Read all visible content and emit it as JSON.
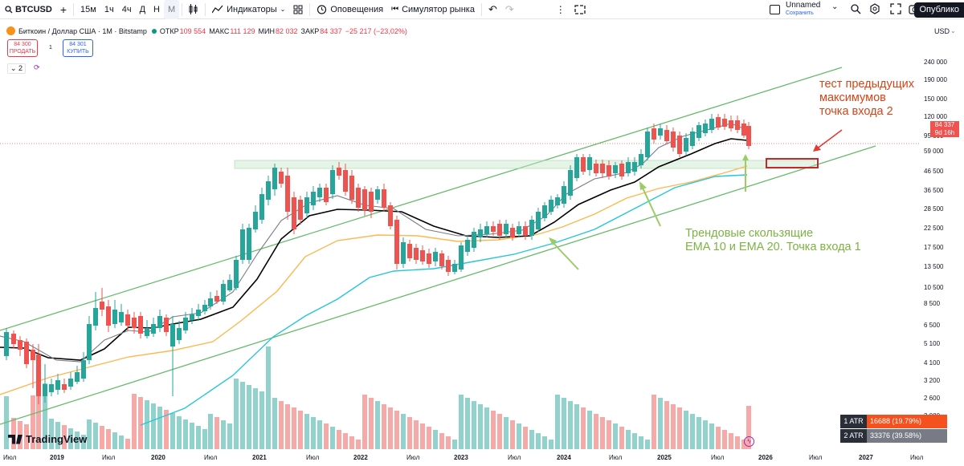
{
  "toolbar": {
    "symbol": "BTCUSD",
    "intervals": [
      "15м",
      "1ч",
      "4ч",
      "Д",
      "Н",
      "М"
    ],
    "active_interval": "М",
    "indicators_label": "Индикаторы",
    "alerts_label": "Оповещения",
    "replay_label": "Симулятор рынка",
    "layout_name": "Unnamed",
    "layout_status": "Сохранить",
    "publish_label": "Опублико"
  },
  "legend": {
    "title": "Биткоин / Доллар США · 1М · Bitstamp",
    "open_label": "ОТКР",
    "open": "109 554",
    "high_label": "МАКС",
    "high": "111 129",
    "low_label": "МИН",
    "low": "82 032",
    "close_label": "ЗАКР",
    "close": "84 337",
    "change": "−25 217 (−23,02%)"
  },
  "trade": {
    "sell_price": "84 300",
    "sell_label": "ПРОДАТЬ",
    "spread": "1",
    "buy_price": "84 301",
    "buy_label": "КУПИТЬ"
  },
  "indicators_count": "2",
  "price_axis": {
    "currency": "USD",
    "labels": [
      "240 000",
      "190 000",
      "150 000",
      "120 000",
      "95 000",
      "59 000",
      "46 500",
      "36 500",
      "28 500",
      "22 500",
      "17 500",
      "13 500",
      "10 500",
      "8 500",
      "6 500",
      "5 100",
      "4 100",
      "3 200",
      "2 600",
      "2 080"
    ],
    "last_price": "84 337",
    "countdown": "9d 16h"
  },
  "time_axis": [
    "Июл",
    "2019",
    "Июл",
    "2020",
    "Июл",
    "2021",
    "Июл",
    "2022",
    "Июл",
    "2023",
    "Июл",
    "2024",
    "Июл",
    "2025",
    "Июл",
    "2026",
    "Июл",
    "2027",
    "Июл"
  ],
  "annotations": {
    "red": [
      "тест предыдущих",
      "максимумов",
      "точка входа 2"
    ],
    "green": [
      "Трендовые скользящие",
      "EMA 10 и EMA 20. Точка входа 1"
    ]
  },
  "atr": [
    {
      "key": "1 ATR",
      "value": "16688 (19.79%)",
      "color": "#f4511e"
    },
    {
      "key": "2 ATR",
      "value": "33376 (39.58%)",
      "color": "#787b86"
    }
  ],
  "logo": "TradingView",
  "colors": {
    "up": "#26a69a",
    "down": "#ef5350",
    "channel": "#66bb6a",
    "ema_black": "#000000",
    "ema_gray": "#787b86",
    "ema_orange": "#ffb74d",
    "ema_blue": "#26c6da"
  },
  "chart_data": {
    "type": "candlestick",
    "series": [
      {
        "name": "BTCUSD",
        "interval": "1M",
        "exchange": "Bitstamp"
      }
    ]
  }
}
